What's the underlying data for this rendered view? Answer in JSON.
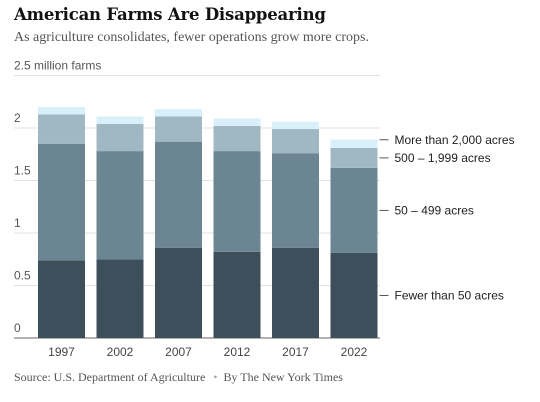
{
  "title": "American Farms Are Disappearing",
  "subtitle": "As agriculture consolidates, fewer operations grow more crops.",
  "footer": {
    "source": "Source: U.S. Department of Agriculture",
    "byline": "By The New York Times"
  },
  "colors": {
    "Fewer than 50 acres": "#3e4f5c",
    "50 – 499 acres": "#6c8593",
    "500 – 1,999 acres": "#a0b7c4",
    "More than 2,000 acres": "#d9f0fa"
  },
  "chart_data": {
    "type": "bar",
    "stacked": true,
    "categories": [
      "1997",
      "2002",
      "2007",
      "2012",
      "2017",
      "2022"
    ],
    "series": [
      {
        "name": "Fewer than 50 acres",
        "values": [
          0.74,
          0.75,
          0.86,
          0.82,
          0.86,
          0.81
        ]
      },
      {
        "name": "50 – 499 acres",
        "values": [
          1.11,
          1.03,
          1.01,
          0.96,
          0.9,
          0.81
        ]
      },
      {
        "name": "500 – 1,999 acres",
        "values": [
          0.28,
          0.26,
          0.24,
          0.24,
          0.23,
          0.19
        ]
      },
      {
        "name": "More than 2,000 acres",
        "values": [
          0.07,
          0.07,
          0.07,
          0.07,
          0.07,
          0.08
        ]
      }
    ],
    "ylabel": "2.5 million farms",
    "ylim": [
      0,
      2.5
    ],
    "yticks": [
      0,
      0.5,
      1,
      1.5,
      2
    ],
    "ytick_labels": [
      "0",
      "0.5",
      "1",
      "1.5",
      "2"
    ],
    "legend_placement": "right, aligned with last bar",
    "grid": true
  }
}
